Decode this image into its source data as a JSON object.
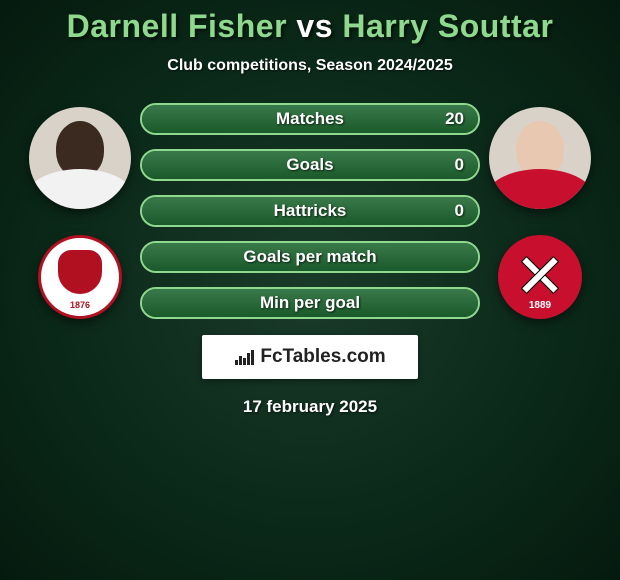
{
  "title": {
    "player1": "Darnell Fisher",
    "vs": "vs",
    "player2": "Harry Souttar"
  },
  "subtitle": "Club competitions, Season 2024/2025",
  "players": {
    "left": {
      "skin": "#3a2a20",
      "shirt": "#f2f2f2"
    },
    "right": {
      "skin": "#e8c8b0",
      "shirt": "#c8102e"
    }
  },
  "clubs": {
    "left_year": "1876",
    "right_year": "1889"
  },
  "stats": [
    {
      "label": "Matches",
      "value": "20",
      "fill_pct": 100
    },
    {
      "label": "Goals",
      "value": "0",
      "fill_pct": 100
    },
    {
      "label": "Hattricks",
      "value": "0",
      "fill_pct": 100
    },
    {
      "label": "Goals per match",
      "value": "",
      "fill_pct": 100
    },
    {
      "label": "Min per goal",
      "value": "",
      "fill_pct": 100
    }
  ],
  "colors": {
    "accent": "#8fd98f",
    "bar_border": "#8fd98f",
    "bar_fill_top": "#3a7a4a",
    "bar_fill_bottom": "#1a5a2a",
    "bg_center": "#1a3a2a",
    "bg_edge": "#051a0e",
    "text": "#ffffff",
    "brand_bg": "#ffffff",
    "brand_text": "#222222"
  },
  "brand": "FcTables.com",
  "date": "17 february 2025"
}
